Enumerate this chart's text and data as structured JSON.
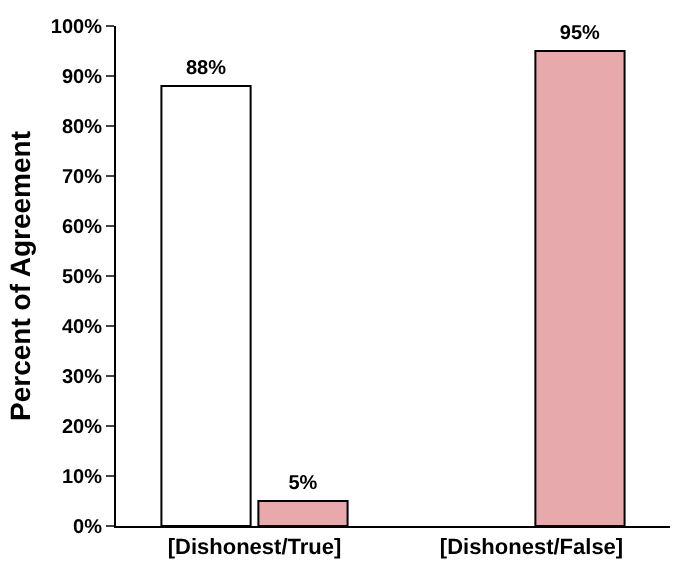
{
  "chart_data": {
    "type": "bar",
    "ylabel": "Percent of Agreement",
    "categories": [
      "[Dishonest/True]",
      "[Dishonest/False]"
    ],
    "series": [
      {
        "color": "#ffffff",
        "values": [
          88,
          null
        ],
        "value_labels": [
          "88%",
          null
        ]
      },
      {
        "color": "#e8a9ad",
        "values": [
          5,
          95
        ],
        "value_labels": [
          "5%",
          "95%"
        ]
      }
    ],
    "ylim": [
      0,
      100
    ],
    "yticks": [
      {
        "value": 0,
        "label": "0%"
      },
      {
        "value": 10,
        "label": "10%"
      },
      {
        "value": 20,
        "label": "20%"
      },
      {
        "value": 30,
        "label": "30%"
      },
      {
        "value": 40,
        "label": "40%"
      },
      {
        "value": 50,
        "label": "50%"
      },
      {
        "value": 60,
        "label": "60%"
      },
      {
        "value": 70,
        "label": "70%"
      },
      {
        "value": 80,
        "label": "80%"
      },
      {
        "value": 90,
        "label": "90%"
      },
      {
        "value": 100,
        "label": "100%"
      }
    ],
    "grid": false
  }
}
